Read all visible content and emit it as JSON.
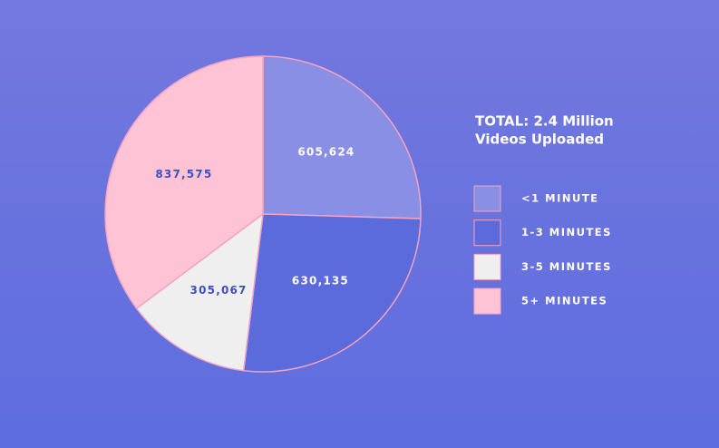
{
  "chart_data": {
    "type": "pie",
    "title": "TOTAL: 2.4 Million",
    "subtitle": "Videos Uploaded",
    "categories": [
      "<1 MINUTE",
      "1-3 MINUTES",
      "3-5 MINUTES",
      "5+ MINUTES"
    ],
    "values": [
      605624,
      630135,
      305067,
      837575
    ],
    "value_labels": [
      "605,624",
      "630,135",
      "305,067",
      "837,575"
    ],
    "colors": [
      "#8a8fe6",
      "#5c6bdc",
      "#efefef",
      "#ffc3d6"
    ],
    "legend": "right"
  }
}
